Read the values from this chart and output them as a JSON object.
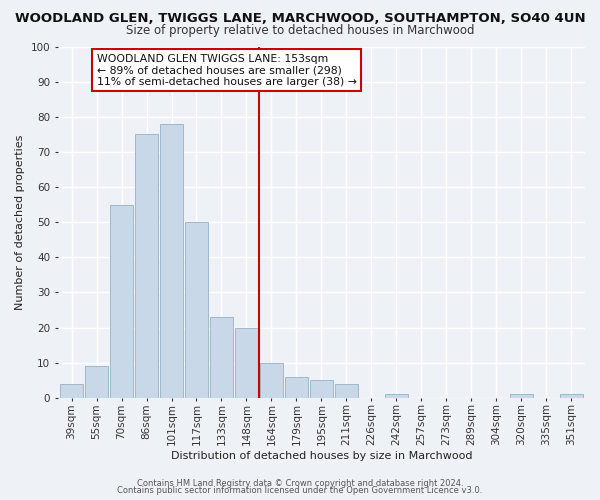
{
  "title": "WOODLAND GLEN, TWIGGS LANE, MARCHWOOD, SOUTHAMPTON, SO40 4UN",
  "subtitle": "Size of property relative to detached houses in Marchwood",
  "xlabel": "Distribution of detached houses by size in Marchwood",
  "ylabel": "Number of detached properties",
  "bar_labels": [
    "39sqm",
    "55sqm",
    "70sqm",
    "86sqm",
    "101sqm",
    "117sqm",
    "133sqm",
    "148sqm",
    "164sqm",
    "179sqm",
    "195sqm",
    "211sqm",
    "226sqm",
    "242sqm",
    "257sqm",
    "273sqm",
    "289sqm",
    "304sqm",
    "320sqm",
    "335sqm",
    "351sqm"
  ],
  "bar_heights": [
    4,
    9,
    55,
    75,
    78,
    50,
    23,
    20,
    10,
    6,
    5,
    4,
    0,
    1,
    0,
    0,
    0,
    0,
    1,
    0,
    1
  ],
  "bar_color": "#c8d8e8",
  "bar_edge_color": "#a0b8cc",
  "vline_x_idx": 7.5,
  "vline_color": "#cc0000",
  "ylim": [
    0,
    100
  ],
  "annotation_title": "WOODLAND GLEN TWIGGS LANE: 153sqm",
  "annotation_line1": "← 89% of detached houses are smaller (298)",
  "annotation_line2": "11% of semi-detached houses are larger (38) →",
  "annotation_box_color": "#ffffff",
  "annotation_box_edge": "#cc0000",
  "footer1": "Contains HM Land Registry data © Crown copyright and database right 2024.",
  "footer2": "Contains public sector information licensed under the Open Government Licence v3.0.",
  "background_color": "#eef2f7",
  "grid_color": "#ffffff",
  "title_fontsize": 9.5,
  "subtitle_fontsize": 8.5,
  "axis_label_fontsize": 8,
  "tick_fontsize": 7.5
}
